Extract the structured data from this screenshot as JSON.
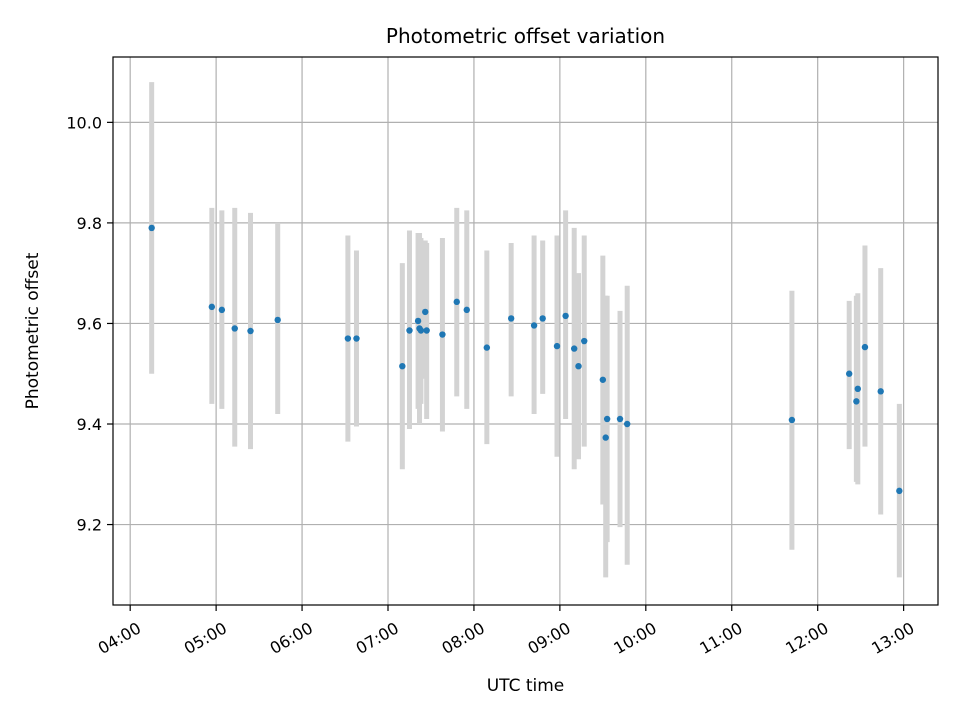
{
  "chart_data": {
    "type": "scatter",
    "title": "Photometric offset variation",
    "xlabel": "UTC time",
    "ylabel": "Photometric offset",
    "x_tick_labels": [
      "04:00",
      "05:00",
      "06:00",
      "07:00",
      "08:00",
      "09:00",
      "10:00",
      "11:00",
      "12:00",
      "13:00"
    ],
    "y_tick_labels": [
      "9.2",
      "9.4",
      "9.6",
      "9.8",
      "10.0"
    ],
    "xlim": [
      "03:48",
      "13:24"
    ],
    "ylim": [
      9.04,
      10.13
    ],
    "grid": true,
    "colors": {
      "points": "#1f77b4",
      "error_bars": "#d3d3d3",
      "grid": "#b0b0b0"
    },
    "points": [
      {
        "x": "04:15",
        "y": 9.79,
        "y_low": 9.5,
        "y_high": 10.08
      },
      {
        "x": "04:57",
        "y": 9.633,
        "y_low": 9.44,
        "y_high": 9.83
      },
      {
        "x": "05:04",
        "y": 9.627,
        "y_low": 9.43,
        "y_high": 9.825
      },
      {
        "x": "05:13",
        "y": 9.59,
        "y_low": 9.355,
        "y_high": 9.83
      },
      {
        "x": "05:24",
        "y": 9.585,
        "y_low": 9.35,
        "y_high": 9.82
      },
      {
        "x": "05:43",
        "y": 9.607,
        "y_low": 9.42,
        "y_high": 9.8
      },
      {
        "x": "06:32",
        "y": 9.57,
        "y_low": 9.365,
        "y_high": 9.775
      },
      {
        "x": "06:38",
        "y": 9.57,
        "y_low": 9.395,
        "y_high": 9.745
      },
      {
        "x": "07:10",
        "y": 9.515,
        "y_low": 9.31,
        "y_high": 9.72
      },
      {
        "x": "07:15",
        "y": 9.586,
        "y_low": 9.39,
        "y_high": 9.785
      },
      {
        "x": "07:21",
        "y": 9.605,
        "y_low": 9.43,
        "y_high": 9.78
      },
      {
        "x": "07:22",
        "y": 9.59,
        "y_low": 9.4,
        "y_high": 9.78
      },
      {
        "x": "07:23",
        "y": 9.586,
        "y_low": 9.44,
        "y_high": 9.77
      },
      {
        "x": "07:26",
        "y": 9.623,
        "y_low": 9.49,
        "y_high": 9.765
      },
      {
        "x": "07:27",
        "y": 9.586,
        "y_low": 9.41,
        "y_high": 9.76
      },
      {
        "x": "07:38",
        "y": 9.578,
        "y_low": 9.385,
        "y_high": 9.77
      },
      {
        "x": "07:48",
        "y": 9.643,
        "y_low": 9.455,
        "y_high": 9.83
      },
      {
        "x": "07:55",
        "y": 9.627,
        "y_low": 9.43,
        "y_high": 9.825
      },
      {
        "x": "08:09",
        "y": 9.552,
        "y_low": 9.36,
        "y_high": 9.745
      },
      {
        "x": "08:26",
        "y": 9.61,
        "y_low": 9.455,
        "y_high": 9.76
      },
      {
        "x": "08:42",
        "y": 9.596,
        "y_low": 9.42,
        "y_high": 9.775
      },
      {
        "x": "08:48",
        "y": 9.61,
        "y_low": 9.46,
        "y_high": 9.765
      },
      {
        "x": "08:58",
        "y": 9.555,
        "y_low": 9.335,
        "y_high": 9.775
      },
      {
        "x": "09:04",
        "y": 9.615,
        "y_low": 9.41,
        "y_high": 9.825
      },
      {
        "x": "09:10",
        "y": 9.55,
        "y_low": 9.31,
        "y_high": 9.79
      },
      {
        "x": "09:13",
        "y": 9.515,
        "y_low": 9.33,
        "y_high": 9.7
      },
      {
        "x": "09:17",
        "y": 9.565,
        "y_low": 9.355,
        "y_high": 9.775
      },
      {
        "x": "09:30",
        "y": 9.488,
        "y_low": 9.24,
        "y_high": 9.735
      },
      {
        "x": "09:32",
        "y": 9.373,
        "y_low": 9.095,
        "y_high": 9.655
      },
      {
        "x": "09:33",
        "y": 9.41,
        "y_low": 9.165,
        "y_high": 9.655
      },
      {
        "x": "09:42",
        "y": 9.41,
        "y_low": 9.195,
        "y_high": 9.625
      },
      {
        "x": "09:47",
        "y": 9.4,
        "y_low": 9.12,
        "y_high": 9.675
      },
      {
        "x": "11:42",
        "y": 9.408,
        "y_low": 9.15,
        "y_high": 9.665
      },
      {
        "x": "12:22",
        "y": 9.5,
        "y_low": 9.35,
        "y_high": 9.645
      },
      {
        "x": "12:27",
        "y": 9.445,
        "y_low": 9.285,
        "y_high": 9.655
      },
      {
        "x": "12:28",
        "y": 9.47,
        "y_low": 9.28,
        "y_high": 9.66
      },
      {
        "x": "12:33",
        "y": 9.553,
        "y_low": 9.355,
        "y_high": 9.755
      },
      {
        "x": "12:44",
        "y": 9.465,
        "y_low": 9.22,
        "y_high": 9.71
      },
      {
        "x": "12:57",
        "y": 9.267,
        "y_low": 9.095,
        "y_high": 9.44
      }
    ]
  }
}
